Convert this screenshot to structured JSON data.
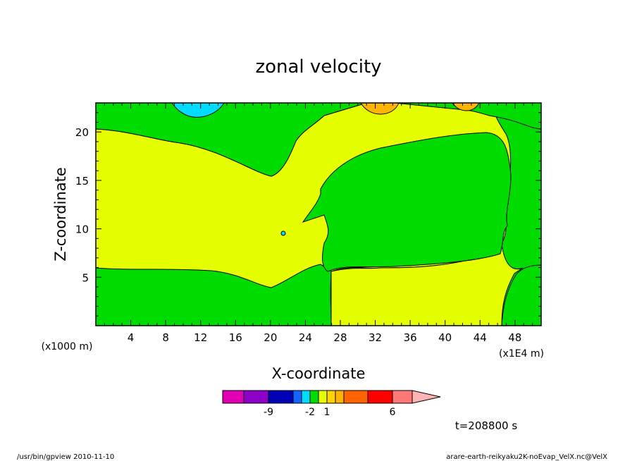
{
  "chart_data": {
    "type": "contour",
    "title": "zonal velocity",
    "xlabel": "X-coordinate",
    "ylabel": "Z-coordinate",
    "x_unit": "(x1E4 m)",
    "y_unit": "(x1000 m)",
    "xlim": [
      0,
      51
    ],
    "ylim": [
      0,
      23
    ],
    "x_ticks": [
      4,
      8,
      12,
      16,
      20,
      24,
      28,
      32,
      36,
      40,
      44,
      48
    ],
    "y_ticks": [
      5,
      10,
      15,
      20
    ],
    "time_label": "t=208800 s",
    "colorbar": {
      "colors": [
        "#e100b4",
        "#8c00c8",
        "#0000b4",
        "#1464ff",
        "#00dcff",
        "#00dc00",
        "#e6ff00",
        "#ffd200",
        "#ffb400",
        "#ff6400",
        "#ff0000",
        "#ff7878",
        "#ffb4b4"
      ],
      "tick_labels": [
        "-9",
        "-2",
        "1",
        "6"
      ],
      "tick_after_index": [
        1,
        4,
        6,
        10
      ]
    },
    "regions": [
      {
        "name": "negative-bubble",
        "level_color": "#00dcff",
        "x": 12,
        "z": 22.5
      },
      {
        "name": "positive-bubble-1",
        "level_color": "#ffb400",
        "x": 32,
        "z": 22.5
      },
      {
        "name": "positive-bubble-2",
        "level_color": "#ffb400",
        "x": 42.5,
        "z": 22.5
      }
    ]
  },
  "footer": {
    "left": "/usr/bin/gpview   2010-11-10",
    "right": "arare-earth-reikyaku2K-noEvap_VelX.nc@VelX"
  }
}
